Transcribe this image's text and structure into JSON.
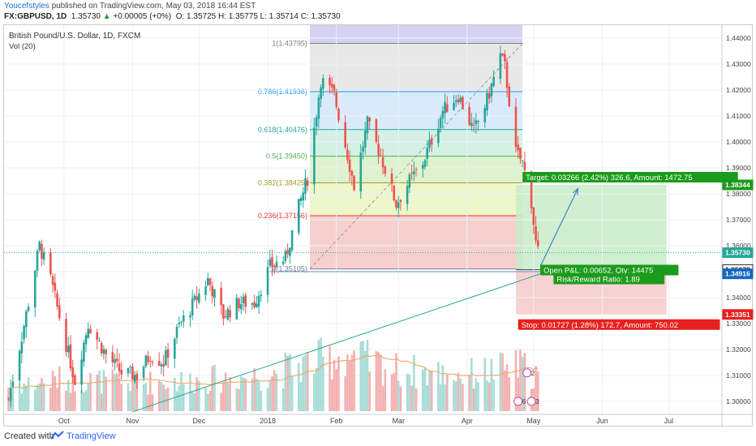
{
  "header": {
    "author": "Youcefstyles",
    "published_text": "published on TradingView.com, May 03, 2018 16:44 EST",
    "symbol": "FX:GBPUSD, 1D",
    "last": "1.35730",
    "change": "+0.00005 (+0%)",
    "ohlc": "O: 1.35725 H: 1.35775 L: 1.35714 C: 1.35730"
  },
  "footer": {
    "created_with": "Created with",
    "brand": "TradingView"
  },
  "colors": {
    "up": "#26a69a",
    "down": "#ef5350",
    "accent": "#2962ff",
    "target_box": "#c8ecc8",
    "stop_box": "#f6caca",
    "target_label": "#1b9b1b",
    "stop_label": "#e8201e",
    "ma": "#f0a05a"
  },
  "chart_data": {
    "type": "candlestick",
    "title": "British Pound/U.S. Dollar, 1D, FXCM",
    "volume_label": "Vol (20)",
    "ylim": [
      1.295,
      1.445
    ],
    "y_ticks": [
      "1.44000",
      "1.43000",
      "1.42000",
      "1.41000",
      "1.40000",
      "1.39000",
      "1.38000",
      "1.37000",
      "1.36000",
      "1.35000",
      "1.34000",
      "1.33000",
      "1.32000",
      "1.31000",
      "1.30000"
    ],
    "x_ticks": [
      {
        "label": "Oct",
        "date": "2017-10-01"
      },
      {
        "label": "Nov",
        "date": "2017-11-01"
      },
      {
        "label": "Dec",
        "date": "2017-12-01"
      },
      {
        "label": "2018",
        "date": "2018-01-01"
      },
      {
        "label": "Feb",
        "date": "2018-02-01"
      },
      {
        "label": "Mar",
        "date": "2018-03-01"
      },
      {
        "label": "Apr",
        "date": "2018-04-01"
      },
      {
        "label": "May",
        "date": "2018-05-01"
      },
      {
        "label": "Jun",
        "date": "2018-06-01"
      },
      {
        "label": "Jul",
        "date": "2018-07-01"
      }
    ],
    "price_path": [
      [
        "2017-09-06",
        1.301
      ],
      [
        "2017-09-12",
        1.325
      ],
      [
        "2017-09-20",
        1.36
      ],
      [
        "2017-09-25",
        1.347
      ],
      [
        "2017-10-02",
        1.322
      ],
      [
        "2017-10-06",
        1.308
      ],
      [
        "2017-10-12",
        1.33
      ],
      [
        "2017-10-20",
        1.318
      ],
      [
        "2017-10-27",
        1.311
      ],
      [
        "2017-11-03",
        1.31
      ],
      [
        "2017-11-09",
        1.318
      ],
      [
        "2017-11-15",
        1.315
      ],
      [
        "2017-11-22",
        1.329
      ],
      [
        "2017-11-28",
        1.337
      ],
      [
        "2017-12-05",
        1.347
      ],
      [
        "2017-12-12",
        1.333
      ],
      [
        "2017-12-19",
        1.338
      ],
      [
        "2017-12-26",
        1.338
      ],
      [
        "2018-01-02",
        1.352
      ],
      [
        "2018-01-09",
        1.355
      ],
      [
        "2018-01-15",
        1.375
      ],
      [
        "2018-01-19",
        1.386
      ],
      [
        "2018-01-25",
        1.424
      ],
      [
        "2018-01-31",
        1.418
      ],
      [
        "2018-02-06",
        1.395
      ],
      [
        "2018-02-09",
        1.383
      ],
      [
        "2018-02-15",
        1.407
      ],
      [
        "2018-02-21",
        1.395
      ],
      [
        "2018-02-28",
        1.376
      ],
      [
        "2018-03-06",
        1.385
      ],
      [
        "2018-03-12",
        1.392
      ],
      [
        "2018-03-21",
        1.412
      ],
      [
        "2018-03-28",
        1.418
      ],
      [
        "2018-04-04",
        1.404
      ],
      [
        "2018-04-10",
        1.416
      ],
      [
        "2018-04-16",
        1.433
      ],
      [
        "2018-04-18",
        1.429
      ],
      [
        "2018-04-23",
        1.396
      ],
      [
        "2018-04-26",
        1.392
      ],
      [
        "2018-04-30",
        1.377
      ],
      [
        "2018-05-02",
        1.361
      ],
      [
        "2018-05-03",
        1.3573
      ]
    ],
    "volume_path": [
      [
        "2017-09-06",
        0.3
      ],
      [
        "2017-10-01",
        0.4
      ],
      [
        "2017-11-01",
        0.35
      ],
      [
        "2017-12-01",
        0.38
      ],
      [
        "2018-01-01",
        0.45
      ],
      [
        "2018-01-20",
        0.6
      ],
      [
        "2018-02-05",
        0.7
      ],
      [
        "2018-03-01",
        0.5
      ],
      [
        "2018-04-01",
        0.45
      ],
      [
        "2018-04-25",
        0.55
      ],
      [
        "2018-05-03",
        0.45
      ]
    ],
    "last_price": 1.3573,
    "fibonacci": {
      "start_date": "2018-01-20",
      "end_date": "2018-04-26",
      "levels": [
        {
          "ratio": 1,
          "price": 1.43795,
          "label": "1(1.43795)",
          "color": "#7f7f7f",
          "fill": "#e8e8e8"
        },
        {
          "ratio": 0.786,
          "price": 1.41936,
          "label": "0.786(1.41936)",
          "color": "#2196f3",
          "fill": "#d9ebfa"
        },
        {
          "ratio": 0.618,
          "price": 1.40476,
          "label": "0.618(1.40476)",
          "color": "#26a69a",
          "fill": "#d5f0e5"
        },
        {
          "ratio": 0.5,
          "price": 1.3945,
          "label": "0.5(1.39450)",
          "color": "#4caf50",
          "fill": "#dff2cf"
        },
        {
          "ratio": 0.382,
          "price": 1.38425,
          "label": "0.382(1.38425)",
          "color": "#9e9d24",
          "fill": "#eef6cc"
        },
        {
          "ratio": 0.236,
          "price": 1.37156,
          "label": "0.236(1.37156)",
          "color": "#e53935",
          "fill": "#f6d0cf"
        },
        {
          "ratio": 0,
          "price": 1.35105,
          "label": "0(1.35105)",
          "color": "#7f7f7f"
        }
      ]
    },
    "fib_top_band": {
      "low": 1.43795,
      "high": 1.446,
      "fill": "#c9c8f0"
    },
    "position": {
      "start_date": "2018-04-23",
      "end_date": "2018-06-30",
      "entry": 1.35078,
      "target": 1.38344,
      "stop": 1.33351,
      "arrow_start": {
        "date": "2018-05-04",
        "price": 1.352
      },
      "arrow_end": {
        "date": "2018-05-21",
        "price": 1.382
      },
      "target_label": "Target: 0.03266 (2.42%) 326.6, Amount: 1472.75",
      "stop_label": "Stop: 0.01727 (1.28%) 172.7, Amount: 750.02",
      "pnl_label": "Open P&L: 0.00652, Qty: 14475",
      "rr_label": "Risk/Reward Ratio: 1.89"
    },
    "trendline": {
      "x1": "2017-11-01",
      "y1": 1.296,
      "x2": "2018-05-07",
      "y2": 1.35
    },
    "support_line": {
      "x1": "2018-01-02",
      "x2": "2018-05-07",
      "price": 1.35
    },
    "price_badges": [
      {
        "price": 1.38344,
        "label": "1.38344",
        "bg": "#1b9b1b",
        "fg": "#ffffff"
      },
      {
        "price": 1.3573,
        "label": "1.35730",
        "bg": "#26a69a",
        "fg": "#ffffff"
      },
      {
        "price": 1.35078,
        "label": "1.35078",
        "bg": "#ffffff",
        "fg": "#222222"
      },
      {
        "price": 1.34916,
        "label": "1.34916",
        "bg": "#1565c0",
        "fg": "#ffffff"
      },
      {
        "price": 1.33351,
        "label": "1.33351",
        "bg": "#e8201e",
        "fg": "#ffffff"
      }
    ],
    "event_markers": [
      {
        "date": "2018-04-28",
        "price": 1.311,
        "text": "2"
      },
      {
        "date": "2018-04-24",
        "price": 1.3,
        "text": "6"
      },
      {
        "date": "2018-04-30",
        "price": 1.3,
        "text": "3"
      }
    ]
  }
}
